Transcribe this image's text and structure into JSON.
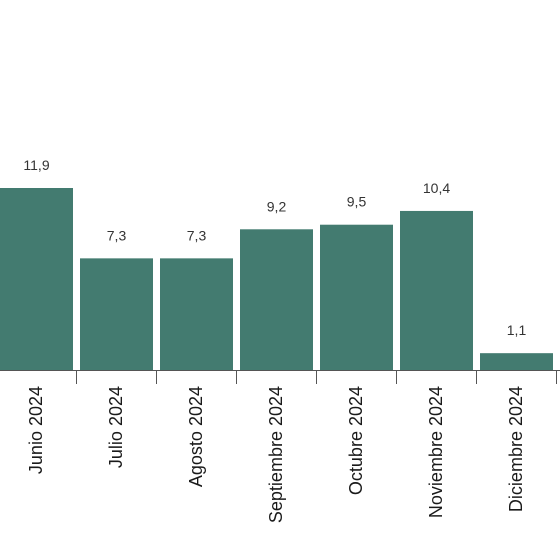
{
  "chart_data": {
    "type": "bar",
    "categories": [
      "Junio 2024",
      "Julio 2024",
      "Agosto 2024",
      "Septiembre 2024",
      "Octubre 2024",
      "Noviembre 2024",
      "Diciembre 2024"
    ],
    "values": [
      11.9,
      7.3,
      7.3,
      9.2,
      9.5,
      10.4,
      1.1
    ],
    "value_labels": [
      "11,9",
      "7,3",
      "7,3",
      "9,2",
      "9,5",
      "10,4",
      "1,1"
    ],
    "title": "",
    "xlabel": "",
    "ylabel": "",
    "ylim": [
      0,
      12
    ],
    "grid": false,
    "bar_color": "#437b70",
    "axis_color": "#555555"
  }
}
